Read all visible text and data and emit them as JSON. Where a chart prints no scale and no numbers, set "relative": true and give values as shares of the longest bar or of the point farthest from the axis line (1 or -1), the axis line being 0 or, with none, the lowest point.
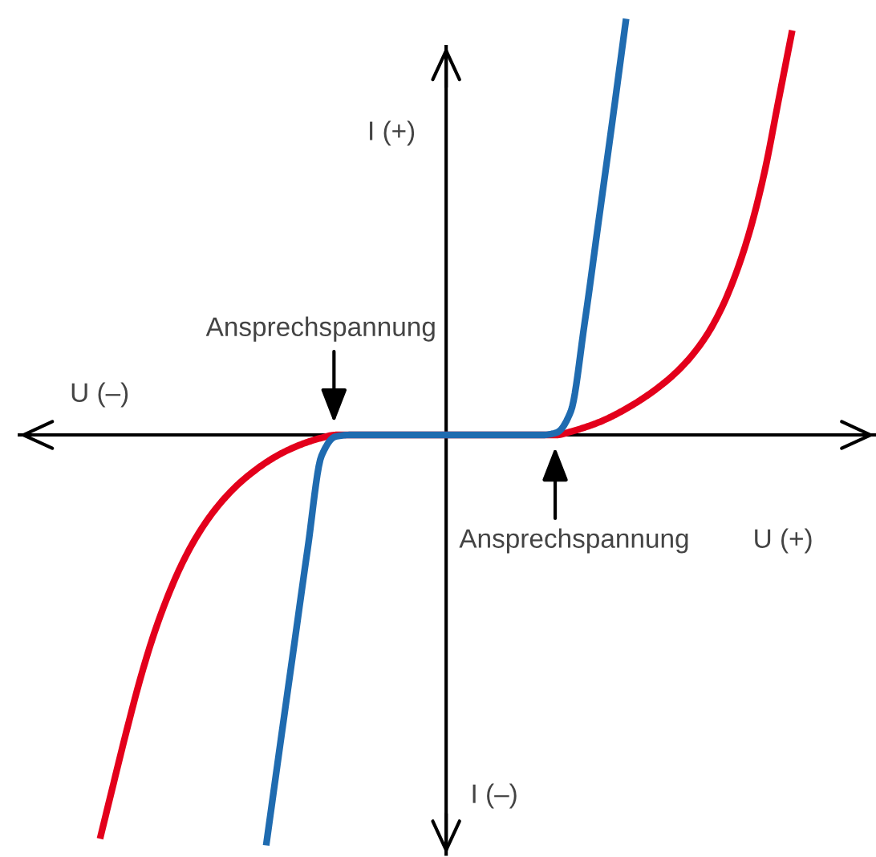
{
  "chart_data": {
    "type": "line",
    "relative": true,
    "xlabel": "U (+)",
    "ylabel": "I (+)",
    "annotations": [
      "U (–)",
      "I (–)",
      "Ansprechspannung",
      "Ansprechspannung"
    ],
    "categories": [
      null,
      null,
      null,
      null,
      null,
      null,
      null,
      null,
      null,
      null,
      null,
      null,
      null,
      null,
      null,
      null,
      null,
      null,
      null,
      null,
      null,
      null,
      null,
      null,
      null,
      null,
      null,
      null,
      null,
      null,
      null,
      null,
      null,
      null,
      null,
      null,
      null,
      null,
      null,
      null,
      null,
      null,
      null,
      null,
      null,
      null,
      null,
      null,
      null,
      null,
      null
    ],
    "series": [
      {
        "color": "#e3001b",
        "values": [
          -0.97,
          -0.834,
          -0.7,
          -0.575,
          -0.468,
          -0.379,
          -0.304,
          -0.243,
          -0.193,
          -0.152,
          -0.118,
          -0.09,
          -0.066,
          -0.046,
          -0.03,
          -0.017,
          -0.007,
          0,
          0,
          0,
          0,
          0,
          0,
          0,
          0,
          0,
          0,
          0,
          0,
          0,
          0,
          0,
          0,
          0,
          0.008,
          0.018,
          0.03,
          0.045,
          0.063,
          0.083,
          0.106,
          0.132,
          0.163,
          0.201,
          0.249,
          0.312,
          0.394,
          0.498,
          0.632,
          0.802,
          0.972
        ]
      },
      {
        "color": "#1f6bb0",
        "values": [
          null,
          null,
          null,
          null,
          null,
          null,
          null,
          null,
          null,
          null,
          null,
          null,
          -0.986,
          -0.747,
          -0.51,
          -0.273,
          -0.05,
          -0.004,
          0,
          0,
          0,
          0,
          0,
          0,
          0,
          0,
          0,
          0,
          0,
          0,
          0,
          0,
          0,
          0.006,
          0.056,
          0.268,
          0.51,
          0.752,
          1.0,
          null,
          null,
          null,
          null,
          null,
          null,
          null,
          null,
          null,
          null,
          null,
          null
        ]
      }
    ]
  }
}
